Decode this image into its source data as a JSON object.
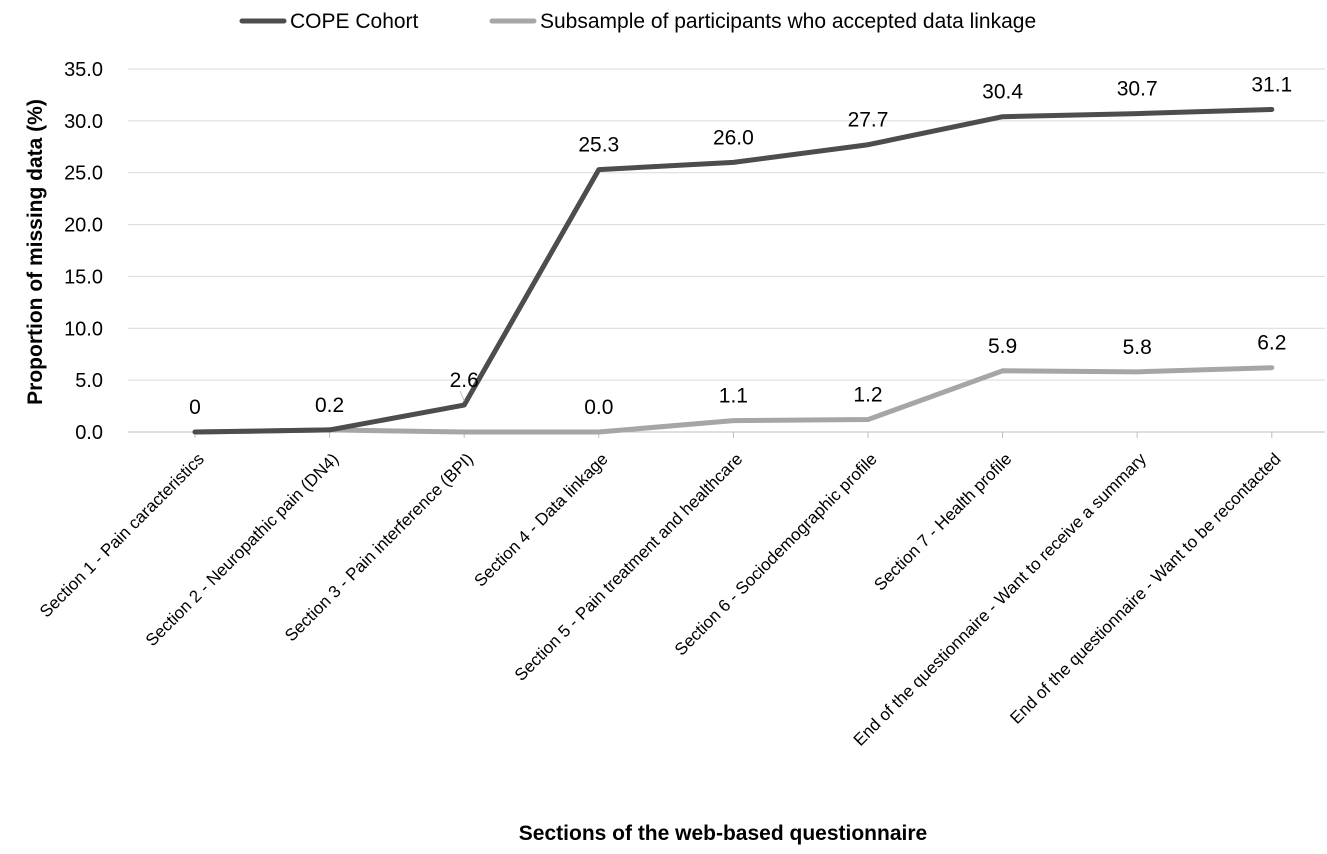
{
  "chart_data": {
    "type": "line",
    "categories": [
      "Section 1 - Pain caracteristics",
      "Section 2 - Neuropathic pain (DN4)",
      "Section 3 - Pain interference (BPI)",
      "Section 4 - Data linkage",
      "Section 5 - Pain treatment and healthcare",
      "Section 6 - Sociodemographic profile",
      "Section 7 - Health profile",
      "End of the questionnaire - Want to receive a summary",
      "End of the questionnaire - Want to be recontacted"
    ],
    "series": [
      {
        "name": "COPE Cohort",
        "color": "#4d4d4d",
        "values": [
          0,
          0.2,
          2.6,
          25.3,
          26.0,
          27.7,
          30.4,
          30.7,
          31.1
        ],
        "labels": [
          "0",
          "0.2",
          "2.6",
          "25.3",
          "26.0",
          "27.7",
          "30.4",
          "30.7",
          "31.1"
        ]
      },
      {
        "name": "Subsample of participants who accepted data linkage",
        "color": "#a6a6a6",
        "values": [
          0,
          0.2,
          0,
          0.0,
          1.1,
          1.2,
          5.9,
          5.8,
          6.2
        ],
        "labels": [
          "",
          "",
          "",
          "0.0",
          "1.1",
          "1.2",
          "5.9",
          "5.8",
          "6.2"
        ]
      }
    ],
    "xlabel": "Sections of the web-based questionnaire",
    "ylabel": "Proportion of missing data (%)",
    "ylim": [
      0,
      35
    ],
    "yticks": [
      "0.0",
      "5.0",
      "10.0",
      "15.0",
      "20.0",
      "25.0",
      "30.0",
      "35.0"
    ],
    "grid": true,
    "legend_position": "top"
  }
}
